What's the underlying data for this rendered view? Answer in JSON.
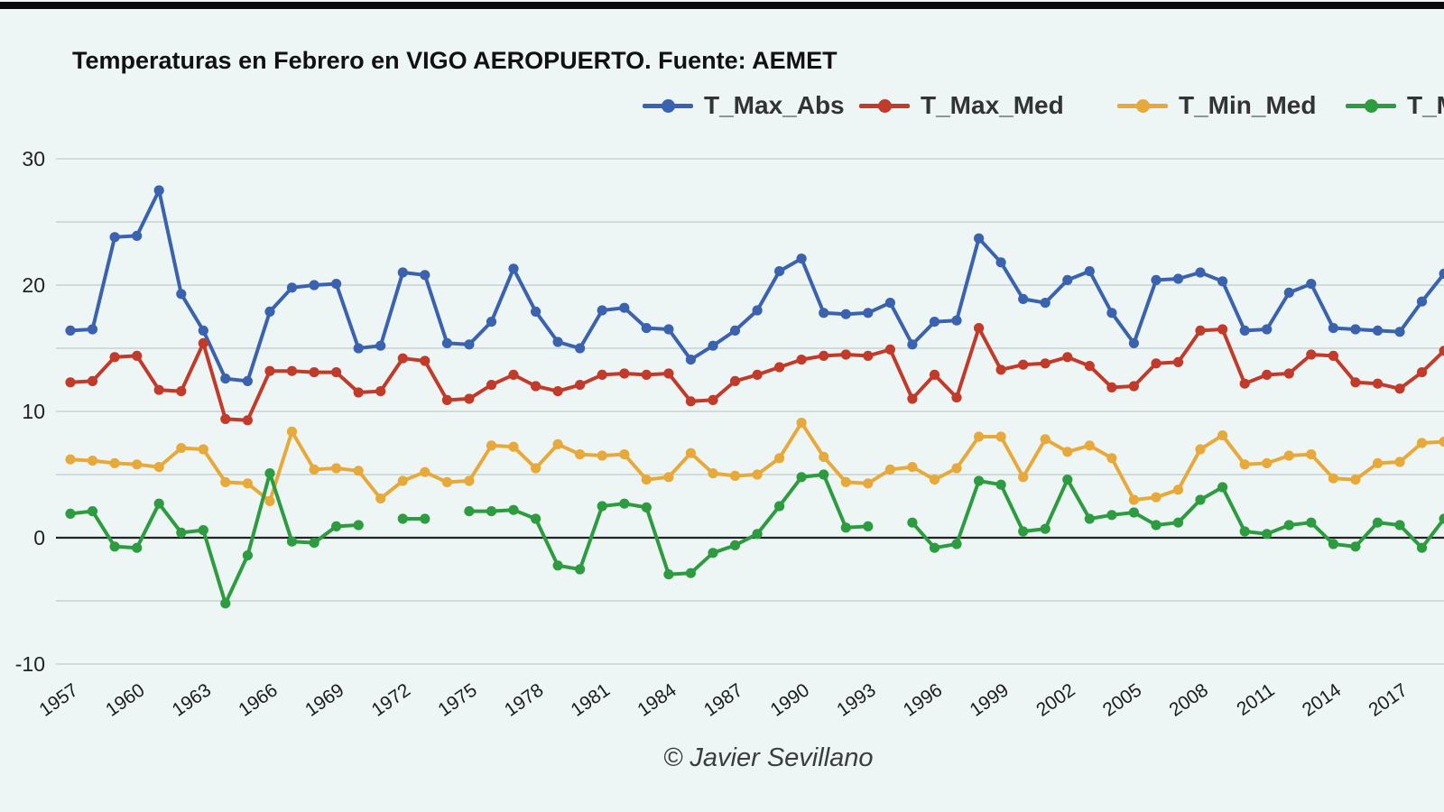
{
  "page": {
    "title": "Temperaturas en Febrero en VIGO AEROPUERTO. Fuente: AEMET",
    "footer": "© Javier Sevillano"
  },
  "colors": {
    "background": "#edf6f5",
    "top_bar": "#0a0a0a",
    "gridline": "#c7d2d2",
    "zero_line": "#222222",
    "tick_text": "#1c1c1c",
    "title_text": "#111111",
    "legend_text": "#333333"
  },
  "chart_data": {
    "type": "line",
    "title": "Temperaturas en Febrero en VIGO AEROPUERTO. Fuente: AEMET",
    "xlabel": "",
    "ylabel": "",
    "legend_position": "top",
    "grid": true,
    "marker": "circle",
    "ylim": [
      -12,
      32
    ],
    "y_ticks_labeled": [
      30,
      20,
      10,
      0,
      -10
    ],
    "y_gridlines": [
      30,
      25,
      20,
      15,
      10,
      5,
      0,
      -5,
      -10
    ],
    "x_tick_labels": [
      "1957",
      "1960",
      "1963",
      "1966",
      "1969",
      "1972",
      "1975",
      "1978",
      "1981",
      "1984",
      "1987",
      "1990",
      "1993",
      "1996",
      "1999",
      "2002",
      "2005",
      "2008",
      "2011",
      "2014",
      "2017"
    ],
    "x": [
      1957,
      1958,
      1959,
      1960,
      1961,
      1962,
      1963,
      1964,
      1965,
      1966,
      1967,
      1968,
      1969,
      1970,
      1971,
      1972,
      1973,
      1974,
      1975,
      1976,
      1977,
      1978,
      1979,
      1980,
      1981,
      1982,
      1983,
      1984,
      1985,
      1986,
      1987,
      1988,
      1989,
      1990,
      1991,
      1992,
      1993,
      1994,
      1995,
      1996,
      1997,
      1998,
      1999,
      2000,
      2001,
      2002,
      2003,
      2004,
      2005,
      2006,
      2007,
      2008,
      2009,
      2010,
      2011,
      2012,
      2013,
      2014,
      2015,
      2016,
      2017,
      2018,
      2019
    ],
    "series": [
      {
        "name": "T_Max_Abs",
        "legend_visible": "T_Max_Abs",
        "color": "#3a62ae",
        "values": [
          16.4,
          16.5,
          23.8,
          23.9,
          27.5,
          19.3,
          16.4,
          12.6,
          12.4,
          17.9,
          19.8,
          20.0,
          20.1,
          15.0,
          15.2,
          21.0,
          20.8,
          15.4,
          15.3,
          17.1,
          21.3,
          17.9,
          15.5,
          15.0,
          18.0,
          18.2,
          16.6,
          16.5,
          14.1,
          15.2,
          16.4,
          18.0,
          21.1,
          22.1,
          17.8,
          17.7,
          17.8,
          18.6,
          15.3,
          17.1,
          17.2,
          23.7,
          21.8,
          18.9,
          18.6,
          20.4,
          21.1,
          17.8,
          15.4,
          20.4,
          20.5,
          21.0,
          20.3,
          16.4,
          16.5,
          19.4,
          20.1,
          16.6,
          16.5,
          16.4,
          16.3,
          18.7,
          20.9
        ]
      },
      {
        "name": "T_Max_Med",
        "legend_visible": "T_Max_Med",
        "color": "#c13a2a",
        "values": [
          12.3,
          12.4,
          14.3,
          14.4,
          11.7,
          11.6,
          15.4,
          9.4,
          9.3,
          13.2,
          13.2,
          13.1,
          13.1,
          11.5,
          11.6,
          14.2,
          14.0,
          10.9,
          11.0,
          12.1,
          12.9,
          12.0,
          11.6,
          12.1,
          12.9,
          13.0,
          12.9,
          13.0,
          10.8,
          10.9,
          12.4,
          12.9,
          13.5,
          14.1,
          14.4,
          14.5,
          14.4,
          14.9,
          11.0,
          12.9,
          11.1,
          16.6,
          13.3,
          13.7,
          13.8,
          14.3,
          13.6,
          11.9,
          12.0,
          13.8,
          13.9,
          16.4,
          16.5,
          12.2,
          12.9,
          13.0,
          14.5,
          14.4,
          12.3,
          12.2,
          11.8,
          13.1,
          14.8
        ]
      },
      {
        "name": "T_Min_Med",
        "legend_visible": "T_Min_Med",
        "color": "#e8a93b",
        "values": [
          6.2,
          6.1,
          5.9,
          5.8,
          5.6,
          7.1,
          7.0,
          4.4,
          4.3,
          2.9,
          8.4,
          5.4,
          5.5,
          5.3,
          3.1,
          4.5,
          5.2,
          4.4,
          4.5,
          7.3,
          7.2,
          5.5,
          7.4,
          6.6,
          6.5,
          6.6,
          4.6,
          4.8,
          6.7,
          5.1,
          4.9,
          5.0,
          6.3,
          9.1,
          6.4,
          4.4,
          4.3,
          5.4,
          5.6,
          4.6,
          5.5,
          8.0,
          8.0,
          4.8,
          7.8,
          6.8,
          7.3,
          6.3,
          3.0,
          3.2,
          3.8,
          7.0,
          8.1,
          5.8,
          5.9,
          6.5,
          6.6,
          4.7,
          4.6,
          5.9,
          6.0,
          7.5,
          7.6
        ]
      },
      {
        "name": "T_Min_Abs",
        "legend_visible": "T_M",
        "color": "#2d9b3f",
        "values": [
          1.9,
          2.1,
          -0.7,
          -0.8,
          2.7,
          0.4,
          0.6,
          -5.2,
          -1.4,
          5.1,
          -0.3,
          -0.4,
          0.9,
          1.0,
          null,
          1.5,
          1.5,
          null,
          2.1,
          2.1,
          2.2,
          1.5,
          -2.2,
          -2.5,
          2.5,
          2.7,
          2.4,
          -2.9,
          -2.8,
          -1.2,
          -0.6,
          0.3,
          2.5,
          4.8,
          5.0,
          0.8,
          0.9,
          null,
          1.2,
          -0.8,
          -0.5,
          4.5,
          4.2,
          0.5,
          0.7,
          4.6,
          1.5,
          1.8,
          2.0,
          1.0,
          1.2,
          3.0,
          4.0,
          0.5,
          0.3,
          1.0,
          1.2,
          -0.5,
          -0.7,
          1.2,
          1.0,
          -0.8,
          1.5
        ]
      }
    ]
  },
  "legend_layout": {
    "item_x": [
      712,
      952,
      1238,
      1491
    ]
  }
}
